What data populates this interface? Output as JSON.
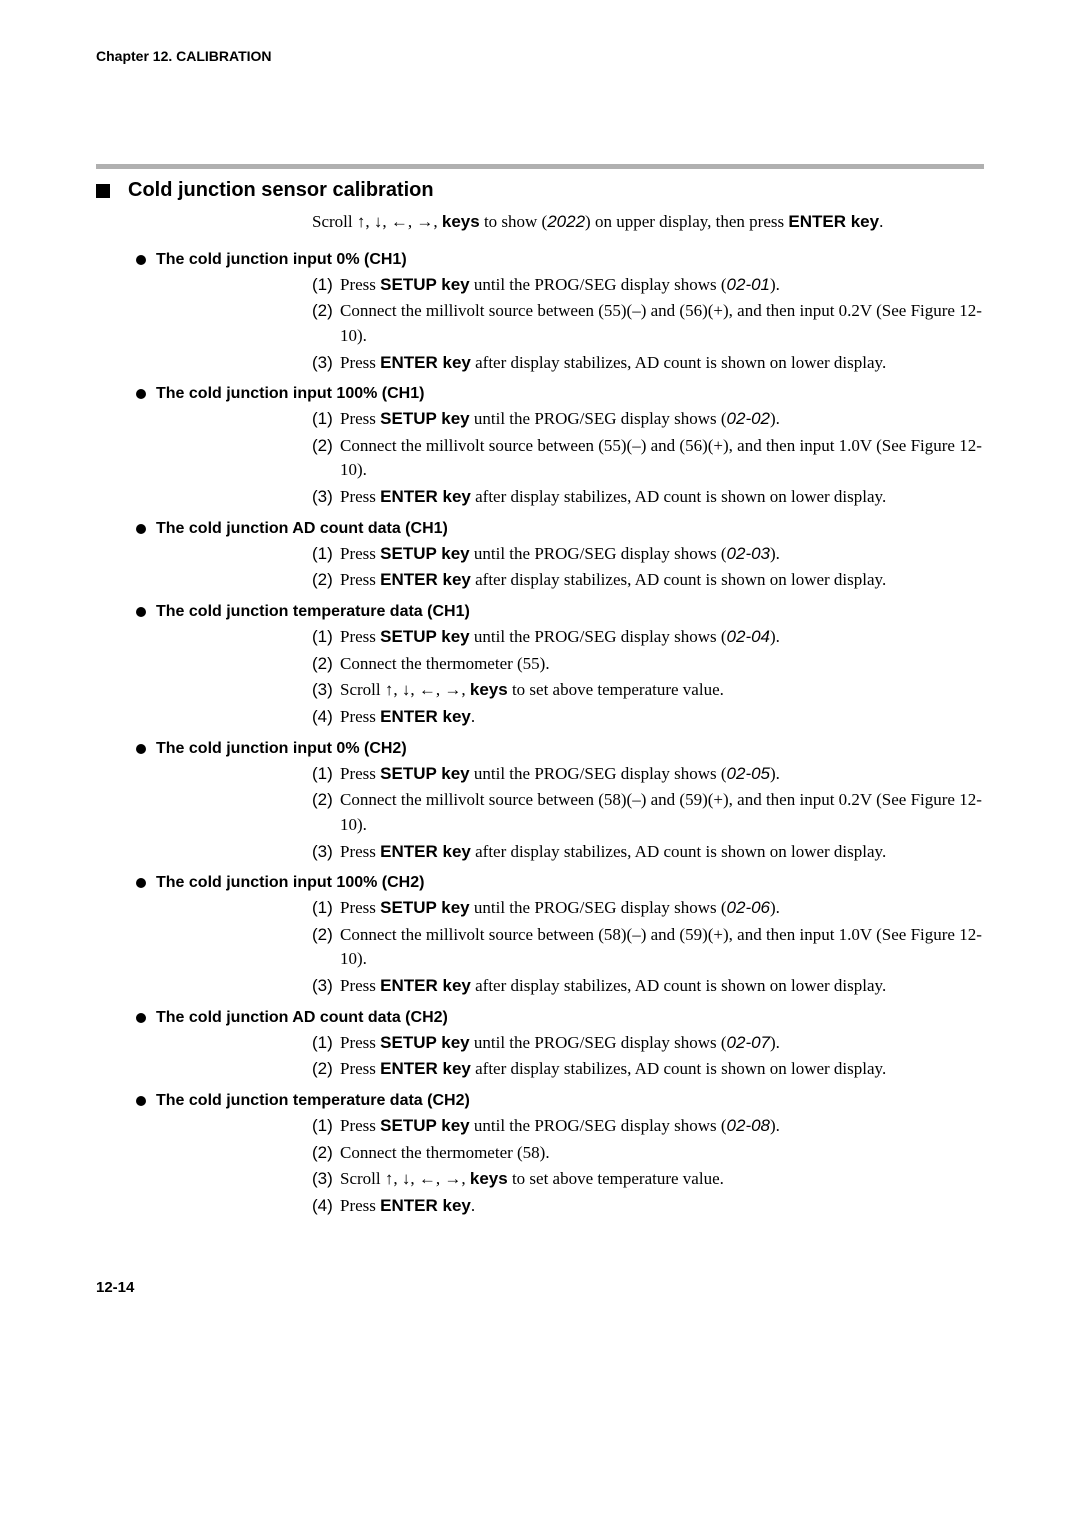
{
  "chapter_header": "Chapter 12.  CALIBRATION",
  "section_title": "Cold junction sensor calibration",
  "intro": {
    "pre": "Scroll ↑, ↓, ←, →, ",
    "bold1": "keys",
    "mid": " to show (",
    "ital": "2022",
    "post": ") on upper display, then press ",
    "bold2": "ENTER key",
    "end": "."
  },
  "subsections": [
    {
      "title": "The cold junction input 0% (CH1)",
      "steps": [
        {
          "num": "(1)",
          "parts": [
            "Press ",
            {
              "b": "SETUP key"
            },
            " until the PROG/SEG display shows (",
            {
              "i": "02-01"
            },
            ")."
          ]
        },
        {
          "num": "(2)",
          "parts": [
            "Connect the millivolt source between (55)(–) and (56)(+), and then input 0.2V (See Figure 12-10)."
          ]
        },
        {
          "num": "(3)",
          "parts": [
            "Press ",
            {
              "b": "ENTER key"
            },
            " after display stabilizes, AD count is shown on lower display."
          ]
        }
      ]
    },
    {
      "title": "The cold junction input 100% (CH1)",
      "steps": [
        {
          "num": "(1)",
          "parts": [
            "Press ",
            {
              "b": "SETUP key"
            },
            " until the PROG/SEG display shows (",
            {
              "i": "02-02"
            },
            ")."
          ]
        },
        {
          "num": "(2)",
          "parts": [
            "Connect the millivolt source between (55)(–) and (56)(+), and then input 1.0V (See Figure 12-10)."
          ]
        },
        {
          "num": "(3)",
          "parts": [
            "Press ",
            {
              "b": "ENTER key"
            },
            " after display stabilizes, AD count is shown on lower display."
          ]
        }
      ]
    },
    {
      "title": "The cold junction AD count data (CH1)",
      "steps": [
        {
          "num": "(1)",
          "parts": [
            "Press ",
            {
              "b": "SETUP key"
            },
            " until the PROG/SEG display shows (",
            {
              "i": "02-03"
            },
            ")."
          ]
        },
        {
          "num": "(2)",
          "parts": [
            "Press ",
            {
              "b": "ENTER key"
            },
            " after display stabilizes, AD count is shown on lower display."
          ]
        }
      ]
    },
    {
      "title": "The cold junction temperature data (CH1)",
      "steps": [
        {
          "num": "(1)",
          "parts": [
            "Press ",
            {
              "b": "SETUP key"
            },
            " until the PROG/SEG display shows (",
            {
              "i": "02-04"
            },
            ")."
          ]
        },
        {
          "num": "(2)",
          "parts": [
            "Connect the thermometer (55)."
          ]
        },
        {
          "num": "(3)",
          "parts": [
            "Scroll ↑, ↓, ←, →, ",
            {
              "b": "keys"
            },
            " to set above temperature value."
          ]
        },
        {
          "num": "(4)",
          "parts": [
            "Press ",
            {
              "b": "ENTER key"
            },
            "."
          ]
        }
      ]
    },
    {
      "title": "The cold junction input 0% (CH2)",
      "steps": [
        {
          "num": "(1)",
          "parts": [
            "Press ",
            {
              "b": "SETUP key"
            },
            " until the PROG/SEG display shows (",
            {
              "i": "02-05"
            },
            ")."
          ]
        },
        {
          "num": "(2)",
          "parts": [
            "Connect the millivolt source between (58)(–) and (59)(+), and then input 0.2V (See Figure 12-10)."
          ]
        },
        {
          "num": "(3)",
          "parts": [
            "Press ",
            {
              "b": "ENTER key"
            },
            " after display stabilizes, AD count is shown on lower display."
          ]
        }
      ]
    },
    {
      "title": "The cold junction input 100% (CH2)",
      "steps": [
        {
          "num": "(1)",
          "parts": [
            "Press ",
            {
              "b": "SETUP key"
            },
            " until the PROG/SEG display shows (",
            {
              "i": "02-06"
            },
            ")."
          ]
        },
        {
          "num": "(2)",
          "parts": [
            "Connect the millivolt source between (58)(–) and (59)(+), and then input 1.0V (See Figure 12-10)."
          ]
        },
        {
          "num": "(3)",
          "parts": [
            "Press ",
            {
              "b": "ENTER key"
            },
            " after display stabilizes, AD count is shown on lower display."
          ]
        }
      ]
    },
    {
      "title": "The cold junction AD count data (CH2)",
      "steps": [
        {
          "num": "(1)",
          "parts": [
            "Press ",
            {
              "b": "SETUP key"
            },
            " until the PROG/SEG display shows (",
            {
              "i": "02-07"
            },
            ")."
          ]
        },
        {
          "num": "(2)",
          "parts": [
            "Press ",
            {
              "b": "ENTER key"
            },
            " after display stabilizes, AD count is shown on lower display."
          ]
        }
      ]
    },
    {
      "title": "The cold junction temperature data (CH2)",
      "steps": [
        {
          "num": "(1)",
          "parts": [
            "Press ",
            {
              "b": "SETUP key"
            },
            " until the PROG/SEG display shows (",
            {
              "i": "02-08"
            },
            ")."
          ]
        },
        {
          "num": "(2)",
          "parts": [
            "Connect the thermometer (58)."
          ]
        },
        {
          "num": "(3)",
          "parts": [
            "Scroll ↑, ↓, ←, →, ",
            {
              "b": "keys"
            },
            " to set above temperature value."
          ]
        },
        {
          "num": "(4)",
          "parts": [
            "Press ",
            {
              "b": "ENTER key"
            },
            "."
          ]
        }
      ]
    }
  ],
  "page_number": "12-14",
  "colors": {
    "rule": "#b0b0b0",
    "text": "#000000",
    "bg": "#ffffff"
  }
}
